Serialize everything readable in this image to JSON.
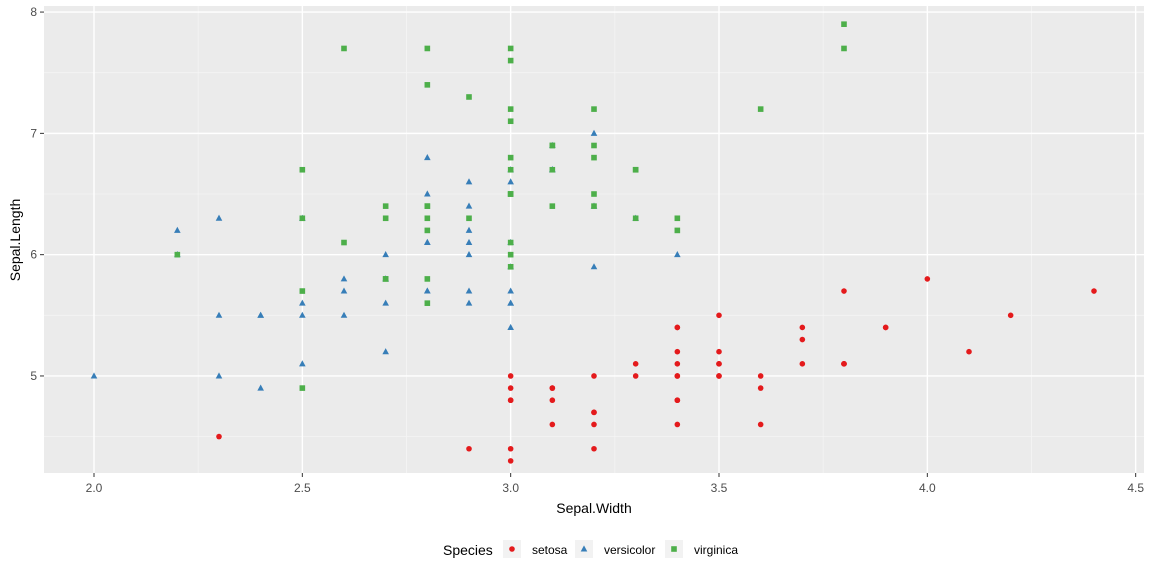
{
  "chart_data": {
    "type": "scatter",
    "xlabel": "Sepal.Width",
    "ylabel": "Sepal.Length",
    "xlim": [
      1.88,
      4.52
    ],
    "ylim": [
      4.2,
      8.05
    ],
    "x_ticks": [
      2.0,
      2.5,
      3.0,
      3.5,
      4.0,
      4.5
    ],
    "x_tick_labels": [
      "2.0",
      "2.5",
      "3.0",
      "3.5",
      "4.0",
      "4.5"
    ],
    "y_ticks": [
      5,
      6,
      7,
      8
    ],
    "y_tick_labels": [
      "5",
      "6",
      "7",
      "8"
    ],
    "y_minor_ticks": [
      4.5,
      5.5,
      6.5,
      7.5
    ],
    "x_minor_ticks": [
      2.25,
      2.75,
      3.25,
      3.75,
      4.25
    ],
    "grid": true,
    "legend_title": "Species",
    "legend_position": "bottom",
    "series": [
      {
        "name": "setosa",
        "color": "#e41a1c",
        "marker": "circle",
        "points": [
          [
            3.5,
            5.1
          ],
          [
            3.0,
            4.9
          ],
          [
            3.2,
            4.7
          ],
          [
            3.1,
            4.6
          ],
          [
            3.6,
            5.0
          ],
          [
            3.9,
            5.4
          ],
          [
            3.4,
            4.6
          ],
          [
            3.4,
            5.0
          ],
          [
            2.9,
            4.4
          ],
          [
            3.1,
            4.9
          ],
          [
            3.7,
            5.4
          ],
          [
            3.4,
            4.8
          ],
          [
            3.0,
            4.8
          ],
          [
            3.0,
            4.3
          ],
          [
            4.0,
            5.8
          ],
          [
            4.4,
            5.7
          ],
          [
            3.9,
            5.4
          ],
          [
            3.5,
            5.1
          ],
          [
            3.8,
            5.7
          ],
          [
            3.8,
            5.1
          ],
          [
            3.4,
            5.4
          ],
          [
            3.7,
            5.1
          ],
          [
            3.6,
            4.6
          ],
          [
            3.3,
            5.1
          ],
          [
            3.4,
            4.8
          ],
          [
            3.0,
            5.0
          ],
          [
            3.4,
            5.0
          ],
          [
            3.5,
            5.2
          ],
          [
            3.4,
            5.2
          ],
          [
            3.2,
            4.7
          ],
          [
            3.1,
            4.8
          ],
          [
            3.4,
            5.4
          ],
          [
            4.1,
            5.2
          ],
          [
            4.2,
            5.5
          ],
          [
            3.1,
            4.9
          ],
          [
            3.2,
            5.0
          ],
          [
            3.5,
            5.5
          ],
          [
            3.6,
            4.9
          ],
          [
            3.0,
            4.4
          ],
          [
            3.4,
            5.1
          ],
          [
            3.5,
            5.0
          ],
          [
            2.3,
            4.5
          ],
          [
            3.2,
            4.4
          ],
          [
            3.5,
            5.0
          ],
          [
            3.8,
            5.1
          ],
          [
            3.0,
            4.8
          ],
          [
            3.8,
            5.1
          ],
          [
            3.2,
            4.6
          ],
          [
            3.7,
            5.3
          ],
          [
            3.3,
            5.0
          ]
        ]
      },
      {
        "name": "versicolor",
        "color": "#377eb8",
        "marker": "triangle",
        "points": [
          [
            3.2,
            7.0
          ],
          [
            3.2,
            6.4
          ],
          [
            3.1,
            6.9
          ],
          [
            2.3,
            5.5
          ],
          [
            2.8,
            6.5
          ],
          [
            2.8,
            5.7
          ],
          [
            3.3,
            6.3
          ],
          [
            2.4,
            4.9
          ],
          [
            2.9,
            6.6
          ],
          [
            2.7,
            5.2
          ],
          [
            2.0,
            5.0
          ],
          [
            3.0,
            5.9
          ],
          [
            2.2,
            6.0
          ],
          [
            2.9,
            6.1
          ],
          [
            2.9,
            5.6
          ],
          [
            3.1,
            6.7
          ],
          [
            3.0,
            5.6
          ],
          [
            2.7,
            5.8
          ],
          [
            2.2,
            6.2
          ],
          [
            2.5,
            5.6
          ],
          [
            3.2,
            5.9
          ],
          [
            2.8,
            6.1
          ],
          [
            2.5,
            6.3
          ],
          [
            2.8,
            6.1
          ],
          [
            2.9,
            6.4
          ],
          [
            3.0,
            6.6
          ],
          [
            2.8,
            6.8
          ],
          [
            3.0,
            6.7
          ],
          [
            2.9,
            6.0
          ],
          [
            2.6,
            5.7
          ],
          [
            2.4,
            5.5
          ],
          [
            2.4,
            5.5
          ],
          [
            2.7,
            5.8
          ],
          [
            2.7,
            6.0
          ],
          [
            3.0,
            5.4
          ],
          [
            3.4,
            6.0
          ],
          [
            3.1,
            6.7
          ],
          [
            2.3,
            6.3
          ],
          [
            3.0,
            5.6
          ],
          [
            2.5,
            5.5
          ],
          [
            2.6,
            5.5
          ],
          [
            3.0,
            6.1
          ],
          [
            2.6,
            5.8
          ],
          [
            2.3,
            5.0
          ],
          [
            2.7,
            5.6
          ],
          [
            3.0,
            5.7
          ],
          [
            2.9,
            5.7
          ],
          [
            2.9,
            6.2
          ],
          [
            2.5,
            5.1
          ],
          [
            2.8,
            5.7
          ]
        ]
      },
      {
        "name": "virginica",
        "color": "#4daf4a",
        "marker": "square",
        "points": [
          [
            3.3,
            6.3
          ],
          [
            2.7,
            5.8
          ],
          [
            3.0,
            7.1
          ],
          [
            2.9,
            6.3
          ],
          [
            3.0,
            6.5
          ],
          [
            3.0,
            7.6
          ],
          [
            2.5,
            4.9
          ],
          [
            2.9,
            7.3
          ],
          [
            2.5,
            6.7
          ],
          [
            3.6,
            7.2
          ],
          [
            3.2,
            6.5
          ],
          [
            2.7,
            6.4
          ],
          [
            3.0,
            6.8
          ],
          [
            2.5,
            5.7
          ],
          [
            2.8,
            5.8
          ],
          [
            3.2,
            6.4
          ],
          [
            3.0,
            6.5
          ],
          [
            3.8,
            7.7
          ],
          [
            2.6,
            7.7
          ],
          [
            2.2,
            6.0
          ],
          [
            3.2,
            6.9
          ],
          [
            2.8,
            5.6
          ],
          [
            2.8,
            7.7
          ],
          [
            2.7,
            6.3
          ],
          [
            3.3,
            6.7
          ],
          [
            3.2,
            7.2
          ],
          [
            2.8,
            6.2
          ],
          [
            3.0,
            6.1
          ],
          [
            2.8,
            6.4
          ],
          [
            3.0,
            7.2
          ],
          [
            2.8,
            7.4
          ],
          [
            3.8,
            7.9
          ],
          [
            2.8,
            6.4
          ],
          [
            2.8,
            6.3
          ],
          [
            2.6,
            6.1
          ],
          [
            3.0,
            7.7
          ],
          [
            3.4,
            6.3
          ],
          [
            3.1,
            6.4
          ],
          [
            3.0,
            6.0
          ],
          [
            3.1,
            6.9
          ],
          [
            3.1,
            6.7
          ],
          [
            3.1,
            6.9
          ],
          [
            2.7,
            5.8
          ],
          [
            3.2,
            6.8
          ],
          [
            3.3,
            6.7
          ],
          [
            3.0,
            6.7
          ],
          [
            2.5,
            6.3
          ],
          [
            3.0,
            6.5
          ],
          [
            3.4,
            6.2
          ],
          [
            3.0,
            5.9
          ]
        ]
      }
    ]
  }
}
